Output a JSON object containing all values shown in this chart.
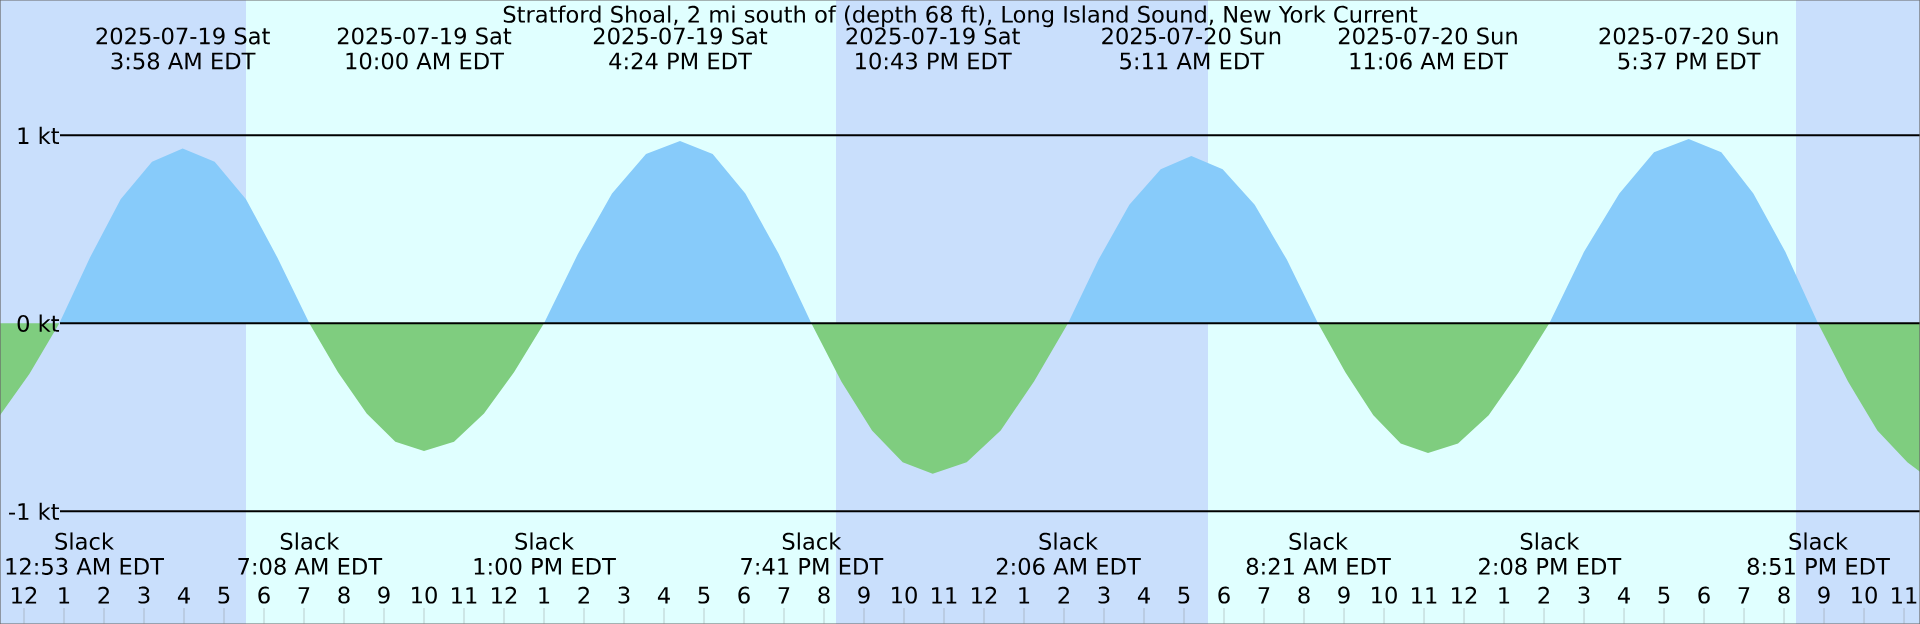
{
  "chart_data": {
    "type": "area",
    "title": "Stratford Shoal, 2 mi south of (depth 68 ft), Long Island Sound, New York Current",
    "x": [
      "2025-07-18T23:24",
      "2025-07-19T00:08",
      "2025-07-19T00:53",
      "2025-07-19T01:39",
      "2025-07-19T02:25",
      "2025-07-19T03:12",
      "2025-07-19T03:58",
      "2025-07-19T04:46",
      "2025-07-19T05:33",
      "2025-07-19T06:20",
      "2025-07-19T07:08",
      "2025-07-19T07:51",
      "2025-07-19T08:34",
      "2025-07-19T09:17",
      "2025-07-19T10:00",
      "2025-07-19T10:45",
      "2025-07-19T11:30",
      "2025-07-19T12:15",
      "2025-07-19T13:00",
      "2025-07-19T13:51",
      "2025-07-19T14:42",
      "2025-07-19T15:33",
      "2025-07-19T16:24",
      "2025-07-19T17:13",
      "2025-07-19T18:02",
      "2025-07-19T18:52",
      "2025-07-19T19:41",
      "2025-07-19T20:26",
      "2025-07-19T21:12",
      "2025-07-19T21:58",
      "2025-07-19T22:43",
      "2025-07-19T23:34",
      "2025-07-20T00:25",
      "2025-07-20T01:15",
      "2025-07-20T02:06",
      "2025-07-20T02:52",
      "2025-07-20T03:38",
      "2025-07-20T04:25",
      "2025-07-20T05:11",
      "2025-07-20T05:58",
      "2025-07-20T06:46",
      "2025-07-20T07:34",
      "2025-07-20T08:21",
      "2025-07-20T09:02",
      "2025-07-20T09:44",
      "2025-07-20T10:25",
      "2025-07-20T11:06",
      "2025-07-20T11:51",
      "2025-07-20T12:37",
      "2025-07-20T13:22",
      "2025-07-20T14:08",
      "2025-07-20T15:00",
      "2025-07-20T15:53",
      "2025-07-20T16:45",
      "2025-07-20T17:37",
      "2025-07-20T18:26",
      "2025-07-20T19:14",
      "2025-07-20T20:02",
      "2025-07-20T20:51",
      "2025-07-20T21:36",
      "2025-07-20T22:20",
      "2025-07-20T23:05",
      "2025-07-20T23:24"
    ],
    "series": [
      {
        "color": "#87cbfa",
        "values": [
          null,
          null,
          0,
          0.35,
          0.66,
          0.86,
          0.93,
          0.86,
          0.66,
          0.35,
          0,
          null,
          null,
          null,
          null,
          null,
          null,
          null,
          0,
          0.37,
          0.69,
          0.9,
          0.97,
          0.9,
          0.69,
          0.37,
          0,
          null,
          null,
          null,
          null,
          null,
          null,
          null,
          0,
          0.34,
          0.63,
          0.82,
          0.89,
          0.82,
          0.63,
          0.34,
          0,
          null,
          null,
          null,
          null,
          null,
          null,
          null,
          0,
          0.38,
          0.69,
          0.91,
          0.98,
          0.91,
          0.69,
          0.38,
          0,
          null,
          null,
          null,
          null
        ]
      },
      {
        "color": "#7fcd7f",
        "values": [
          -0.49,
          -0.27,
          0,
          null,
          null,
          null,
          null,
          null,
          null,
          null,
          0,
          -0.26,
          -0.48,
          -0.63,
          -0.68,
          -0.63,
          -0.48,
          -0.26,
          0,
          null,
          null,
          null,
          null,
          null,
          null,
          null,
          0,
          -0.31,
          -0.57,
          -0.74,
          -0.8,
          -0.74,
          -0.57,
          -0.31,
          0,
          null,
          null,
          null,
          null,
          null,
          null,
          null,
          0,
          -0.26,
          -0.49,
          -0.64,
          -0.69,
          -0.64,
          -0.49,
          -0.26,
          0,
          null,
          null,
          null,
          null,
          null,
          null,
          null,
          0,
          -0.31,
          -0.57,
          -0.74,
          -0.79
        ]
      }
    ],
    "xlim": [
      "2025-07-18T23:24",
      "2025-07-20T23:24"
    ],
    "xticks": [
      {
        "value": "2025-07-19T00:00",
        "label": "12"
      },
      {
        "value": "2025-07-19T01:00",
        "label": "1"
      },
      {
        "value": "2025-07-19T02:00",
        "label": "2"
      },
      {
        "value": "2025-07-19T03:00",
        "label": "3"
      },
      {
        "value": "2025-07-19T04:00",
        "label": "4"
      },
      {
        "value": "2025-07-19T05:00",
        "label": "5"
      },
      {
        "value": "2025-07-19T06:00",
        "label": "6"
      },
      {
        "value": "2025-07-19T07:00",
        "label": "7"
      },
      {
        "value": "2025-07-19T08:00",
        "label": "8"
      },
      {
        "value": "2025-07-19T09:00",
        "label": "9"
      },
      {
        "value": "2025-07-19T10:00",
        "label": "10"
      },
      {
        "value": "2025-07-19T11:00",
        "label": "11"
      },
      {
        "value": "2025-07-19T12:00",
        "label": "12"
      },
      {
        "value": "2025-07-19T13:00",
        "label": "1"
      },
      {
        "value": "2025-07-19T14:00",
        "label": "2"
      },
      {
        "value": "2025-07-19T15:00",
        "label": "3"
      },
      {
        "value": "2025-07-19T16:00",
        "label": "4"
      },
      {
        "value": "2025-07-19T17:00",
        "label": "5"
      },
      {
        "value": "2025-07-19T18:00",
        "label": "6"
      },
      {
        "value": "2025-07-19T19:00",
        "label": "7"
      },
      {
        "value": "2025-07-19T20:00",
        "label": "8"
      },
      {
        "value": "2025-07-19T21:00",
        "label": "9"
      },
      {
        "value": "2025-07-19T22:00",
        "label": "10"
      },
      {
        "value": "2025-07-19T23:00",
        "label": "11"
      },
      {
        "value": "2025-07-20T00:00",
        "label": "12"
      },
      {
        "value": "2025-07-20T01:00",
        "label": "1"
      },
      {
        "value": "2025-07-20T02:00",
        "label": "2"
      },
      {
        "value": "2025-07-20T03:00",
        "label": "3"
      },
      {
        "value": "2025-07-20T04:00",
        "label": "4"
      },
      {
        "value": "2025-07-20T05:00",
        "label": "5"
      },
      {
        "value": "2025-07-20T06:00",
        "label": "6"
      },
      {
        "value": "2025-07-20T07:00",
        "label": "7"
      },
      {
        "value": "2025-07-20T08:00",
        "label": "8"
      },
      {
        "value": "2025-07-20T09:00",
        "label": "9"
      },
      {
        "value": "2025-07-20T10:00",
        "label": "10"
      },
      {
        "value": "2025-07-20T11:00",
        "label": "11"
      },
      {
        "value": "2025-07-20T12:00",
        "label": "12"
      },
      {
        "value": "2025-07-20T13:00",
        "label": "1"
      },
      {
        "value": "2025-07-20T14:00",
        "label": "2"
      },
      {
        "value": "2025-07-20T15:00",
        "label": "3"
      },
      {
        "value": "2025-07-20T16:00",
        "label": "4"
      },
      {
        "value": "2025-07-20T17:00",
        "label": "5"
      },
      {
        "value": "2025-07-20T18:00",
        "label": "6"
      },
      {
        "value": "2025-07-20T19:00",
        "label": "7"
      },
      {
        "value": "2025-07-20T20:00",
        "label": "8"
      },
      {
        "value": "2025-07-20T21:00",
        "label": "9"
      },
      {
        "value": "2025-07-20T22:00",
        "label": "10"
      },
      {
        "value": "2025-07-20T23:00",
        "label": "11"
      }
    ],
    "ylim": [
      -1.6,
      1.72
    ],
    "yticks": [
      {
        "value": 1,
        "label": "1 kt"
      },
      {
        "value": 0,
        "label": "0 kt"
      },
      {
        "value": -1,
        "label": "-1 kt"
      }
    ],
    "grid": "y",
    "bands": [
      {
        "axis": "x",
        "from": "2025-07-18T23:24",
        "to": "2025-07-19T05:33",
        "color": "#c9dffc"
      },
      {
        "axis": "x",
        "from": "2025-07-19T05:33",
        "to": "2025-07-19T20:18",
        "color": "#e0ffff"
      },
      {
        "axis": "x",
        "from": "2025-07-19T20:18",
        "to": "2025-07-20T05:36",
        "color": "#c9dffc"
      },
      {
        "axis": "x",
        "from": "2025-07-20T05:36",
        "to": "2025-07-20T20:18",
        "color": "#e0ffff"
      },
      {
        "axis": "x",
        "from": "2025-07-20T20:18",
        "to": "2025-07-20T23:24",
        "color": "#c9dffc"
      }
    ],
    "annotations": [
      "2025-07-19 Sat\n3:58 AM EDT",
      "2025-07-19 Sat\n10:00 AM EDT",
      "2025-07-19 Sat\n4:24 PM EDT",
      "2025-07-19 Sat\n10:43 PM EDT",
      "2025-07-20 Sun\n5:11 AM EDT",
      "2025-07-20 Sun\n11:06 AM EDT",
      "2025-07-20 Sun\n5:37 PM EDT",
      "Slack\n12:53 AM EDT",
      "Slack\n7:08 AM EDT",
      "Slack\n1:00 PM EDT",
      "Slack\n7:41 PM EDT",
      "Slack\n2:06 AM EDT",
      "Slack\n8:21 AM EDT",
      "Slack\n2:08 PM EDT",
      "Slack\n8:51 PM EDT"
    ]
  }
}
